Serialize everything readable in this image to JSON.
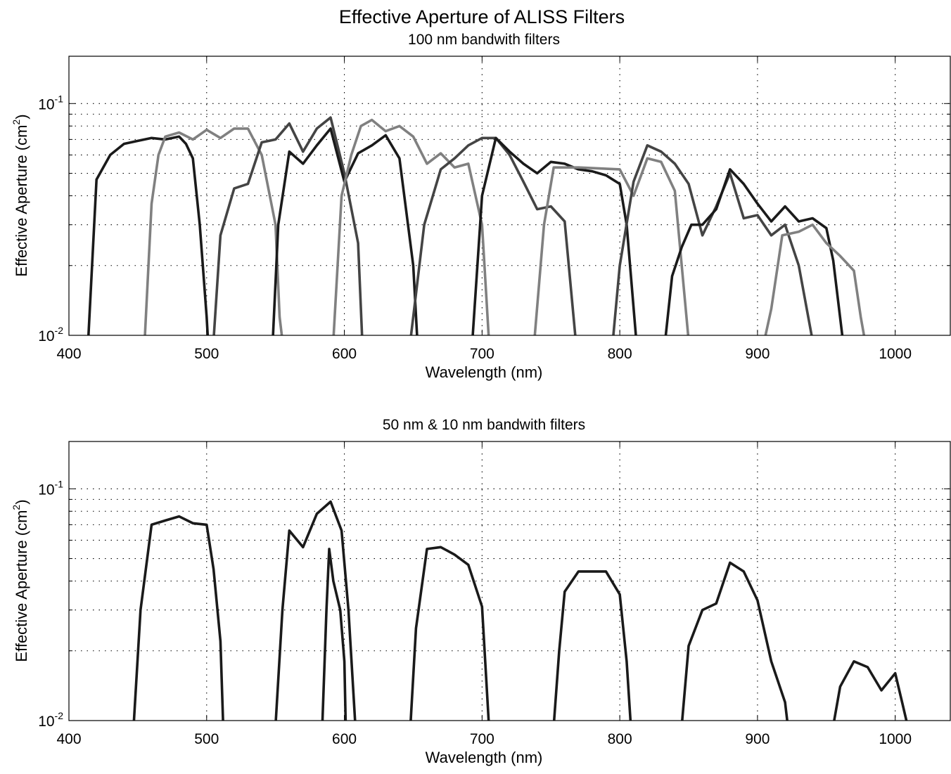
{
  "figure": {
    "title": "Effective Aperture of ALISS Filters"
  },
  "chart_data": [
    {
      "type": "line",
      "title": "100 nm bandwith filters",
      "xlabel": "Wavelength (nm)",
      "ylabel_main": "Effective Aperture (cm",
      "ylabel_sup": "2",
      "ylabel_close": ")",
      "x_scale": "linear",
      "y_scale": "log",
      "xlim": [
        400,
        1040
      ],
      "ylim": [
        0.01,
        0.16
      ],
      "xticks": [
        400,
        500,
        600,
        700,
        800,
        900,
        1000
      ],
      "xtick_labels": [
        "400",
        "500",
        "600",
        "700",
        "800",
        "900",
        "1000"
      ],
      "yticks": [
        0.01,
        0.1
      ],
      "ytick_base": [
        "10",
        "10"
      ],
      "ytick_exp": [
        "-2",
        "-1"
      ],
      "grid": true,
      "series": [
        {
          "color": "#1a1a1a",
          "points": [
            [
              414,
              0.0095
            ],
            [
              420,
              0.047
            ],
            [
              430,
              0.06
            ],
            [
              440,
              0.067
            ],
            [
              450,
              0.069
            ],
            [
              460,
              0.071
            ],
            [
              470,
              0.07
            ],
            [
              480,
              0.072
            ],
            [
              485,
              0.067
            ],
            [
              490,
              0.058
            ],
            [
              495,
              0.03
            ],
            [
              500,
              0.012
            ],
            [
              501,
              0.0095
            ]
          ]
        },
        {
          "color": "#808080",
          "points": [
            [
              455,
              0.0095
            ],
            [
              460,
              0.037
            ],
            [
              465,
              0.06
            ],
            [
              470,
              0.072
            ],
            [
              480,
              0.075
            ],
            [
              490,
              0.07
            ],
            [
              500,
              0.077
            ],
            [
              510,
              0.071
            ],
            [
              520,
              0.078
            ],
            [
              530,
              0.078
            ],
            [
              540,
              0.06
            ],
            [
              550,
              0.03
            ],
            [
              553,
              0.012
            ],
            [
              555,
              0.0095
            ]
          ]
        },
        {
          "color": "#444444",
          "points": [
            [
              505,
              0.0095
            ],
            [
              510,
              0.027
            ],
            [
              520,
              0.043
            ],
            [
              530,
              0.045
            ],
            [
              540,
              0.068
            ],
            [
              550,
              0.07
            ],
            [
              560,
              0.082
            ],
            [
              570,
              0.062
            ],
            [
              580,
              0.078
            ],
            [
              590,
              0.087
            ],
            [
              600,
              0.05
            ],
            [
              610,
              0.025
            ],
            [
              613,
              0.0095
            ]
          ]
        },
        {
          "color": "#1a1a1a",
          "points": [
            [
              548,
              0.0095
            ],
            [
              552,
              0.03
            ],
            [
              560,
              0.062
            ],
            [
              570,
              0.055
            ],
            [
              580,
              0.066
            ],
            [
              590,
              0.078
            ],
            [
              600,
              0.046
            ],
            [
              610,
              0.061
            ],
            [
              620,
              0.066
            ],
            [
              630,
              0.073
            ],
            [
              640,
              0.058
            ],
            [
              650,
              0.02
            ],
            [
              653,
              0.0095
            ]
          ]
        },
        {
          "color": "#808080",
          "points": [
            [
              592,
              0.0095
            ],
            [
              598,
              0.04
            ],
            [
              605,
              0.06
            ],
            [
              612,
              0.08
            ],
            [
              620,
              0.085
            ],
            [
              630,
              0.076
            ],
            [
              640,
              0.08
            ],
            [
              650,
              0.072
            ],
            [
              660,
              0.055
            ],
            [
              670,
              0.061
            ],
            [
              680,
              0.053
            ],
            [
              690,
              0.055
            ],
            [
              700,
              0.03
            ],
            [
              705,
              0.0095
            ]
          ]
        },
        {
          "color": "#444444",
          "points": [
            [
              648,
              0.0095
            ],
            [
              658,
              0.03
            ],
            [
              670,
              0.052
            ],
            [
              680,
              0.058
            ],
            [
              690,
              0.066
            ],
            [
              700,
              0.071
            ],
            [
              710,
              0.071
            ],
            [
              720,
              0.06
            ],
            [
              730,
              0.046
            ],
            [
              740,
              0.035
            ],
            [
              750,
              0.036
            ],
            [
              760,
              0.031
            ],
            [
              768,
              0.0095
            ]
          ]
        },
        {
          "color": "#1a1a1a",
          "points": [
            [
              693,
              0.0095
            ],
            [
              700,
              0.04
            ],
            [
              710,
              0.071
            ],
            [
              720,
              0.062
            ],
            [
              730,
              0.055
            ],
            [
              740,
              0.05
            ],
            [
              750,
              0.056
            ],
            [
              760,
              0.055
            ],
            [
              770,
              0.052
            ],
            [
              780,
              0.051
            ],
            [
              790,
              0.049
            ],
            [
              800,
              0.045
            ],
            [
              805,
              0.03
            ],
            [
              812,
              0.0095
            ]
          ]
        },
        {
          "color": "#808080",
          "points": [
            [
              738,
              0.0095
            ],
            [
              745,
              0.03
            ],
            [
              752,
              0.053
            ],
            [
              770,
              0.053
            ],
            [
              800,
              0.052
            ],
            [
              810,
              0.04
            ],
            [
              820,
              0.058
            ],
            [
              830,
              0.056
            ],
            [
              840,
              0.042
            ],
            [
              850,
              0.0095
            ]
          ]
        },
        {
          "color": "#444444",
          "points": [
            [
              795,
              0.0095
            ],
            [
              800,
              0.02
            ],
            [
              810,
              0.046
            ],
            [
              820,
              0.066
            ],
            [
              830,
              0.062
            ],
            [
              840,
              0.055
            ],
            [
              850,
              0.045
            ],
            [
              860,
              0.027
            ],
            [
              870,
              0.036
            ],
            [
              880,
              0.05
            ],
            [
              890,
              0.032
            ],
            [
              900,
              0.033
            ],
            [
              910,
              0.027
            ],
            [
              920,
              0.03
            ],
            [
              930,
              0.02
            ],
            [
              940,
              0.0095
            ]
          ]
        },
        {
          "color": "#1a1a1a",
          "points": [
            [
              833,
              0.0095
            ],
            [
              838,
              0.018
            ],
            [
              845,
              0.024
            ],
            [
              852,
              0.03
            ],
            [
              860,
              0.03
            ],
            [
              870,
              0.035
            ],
            [
              880,
              0.052
            ],
            [
              890,
              0.045
            ],
            [
              900,
              0.037
            ],
            [
              910,
              0.031
            ],
            [
              920,
              0.036
            ],
            [
              930,
              0.031
            ],
            [
              940,
              0.032
            ],
            [
              950,
              0.029
            ],
            [
              955,
              0.021
            ],
            [
              962,
              0.0095
            ]
          ]
        },
        {
          "color": "#808080",
          "points": [
            [
              905,
              0.0095
            ],
            [
              910,
              0.013
            ],
            [
              918,
              0.027
            ],
            [
              930,
              0.028
            ],
            [
              940,
              0.03
            ],
            [
              950,
              0.025
            ],
            [
              960,
              0.022
            ],
            [
              970,
              0.019
            ],
            [
              975,
              0.012
            ],
            [
              978,
              0.0095
            ]
          ]
        }
      ]
    },
    {
      "type": "line",
      "title": "50 nm & 10 nm bandwith filters",
      "xlabel": "Wavelength (nm)",
      "ylabel_main": "Effective Aperture (cm",
      "ylabel_sup": "2",
      "ylabel_close": ")",
      "x_scale": "linear",
      "y_scale": "log",
      "xlim": [
        400,
        1040
      ],
      "ylim": [
        0.01,
        0.16
      ],
      "xticks": [
        400,
        500,
        600,
        700,
        800,
        900,
        1000
      ],
      "xtick_labels": [
        "400",
        "500",
        "600",
        "700",
        "800",
        "900",
        "1000"
      ],
      "yticks": [
        0.01,
        0.1
      ],
      "ytick_base": [
        "10",
        "10"
      ],
      "ytick_exp": [
        "-2",
        "-1"
      ],
      "grid": true,
      "series": [
        {
          "color": "#1a1a1a",
          "points": [
            [
              447,
              0.0095
            ],
            [
              452,
              0.03
            ],
            [
              460,
              0.07
            ],
            [
              470,
              0.073
            ],
            [
              480,
              0.076
            ],
            [
              490,
              0.071
            ],
            [
              500,
              0.07
            ],
            [
              505,
              0.045
            ],
            [
              510,
              0.022
            ],
            [
              512,
              0.0095
            ]
          ]
        },
        {
          "color": "#1a1a1a",
          "points": [
            [
              550,
              0.0095
            ],
            [
              555,
              0.03
            ],
            [
              560,
              0.066
            ],
            [
              570,
              0.056
            ],
            [
              580,
              0.078
            ],
            [
              590,
              0.088
            ],
            [
              598,
              0.066
            ],
            [
              603,
              0.03
            ],
            [
              608,
              0.0095
            ]
          ]
        },
        {
          "color": "#1a1a1a",
          "points": [
            [
              584,
              0.0095
            ],
            [
              587,
              0.03
            ],
            [
              589,
              0.055
            ],
            [
              592,
              0.04
            ],
            [
              597,
              0.03
            ],
            [
              600,
              0.018
            ],
            [
              601,
              0.0095
            ]
          ]
        },
        {
          "color": "#1a1a1a",
          "points": [
            [
              648,
              0.0095
            ],
            [
              652,
              0.025
            ],
            [
              660,
              0.055
            ],
            [
              670,
              0.056
            ],
            [
              680,
              0.052
            ],
            [
              690,
              0.047
            ],
            [
              700,
              0.031
            ],
            [
              705,
              0.0095
            ]
          ]
        },
        {
          "color": "#1a1a1a",
          "points": [
            [
              752,
              0.0095
            ],
            [
              756,
              0.02
            ],
            [
              760,
              0.036
            ],
            [
              770,
              0.044
            ],
            [
              780,
              0.044
            ],
            [
              790,
              0.044
            ],
            [
              800,
              0.035
            ],
            [
              805,
              0.018
            ],
            [
              808,
              0.0095
            ]
          ]
        },
        {
          "color": "#1a1a1a",
          "points": [
            [
              845,
              0.0095
            ],
            [
              850,
              0.021
            ],
            [
              860,
              0.03
            ],
            [
              870,
              0.032
            ],
            [
              880,
              0.048
            ],
            [
              890,
              0.044
            ],
            [
              900,
              0.033
            ],
            [
              910,
              0.018
            ],
            [
              920,
              0.012
            ],
            [
              922,
              0.0095
            ]
          ]
        },
        {
          "color": "#1a1a1a",
          "points": [
            [
              955,
              0.0095
            ],
            [
              960,
              0.014
            ],
            [
              970,
              0.018
            ],
            [
              980,
              0.017
            ],
            [
              990,
              0.0135
            ],
            [
              1000,
              0.016
            ],
            [
              1005,
              0.012
            ],
            [
              1009,
              0.0095
            ]
          ]
        }
      ]
    }
  ]
}
